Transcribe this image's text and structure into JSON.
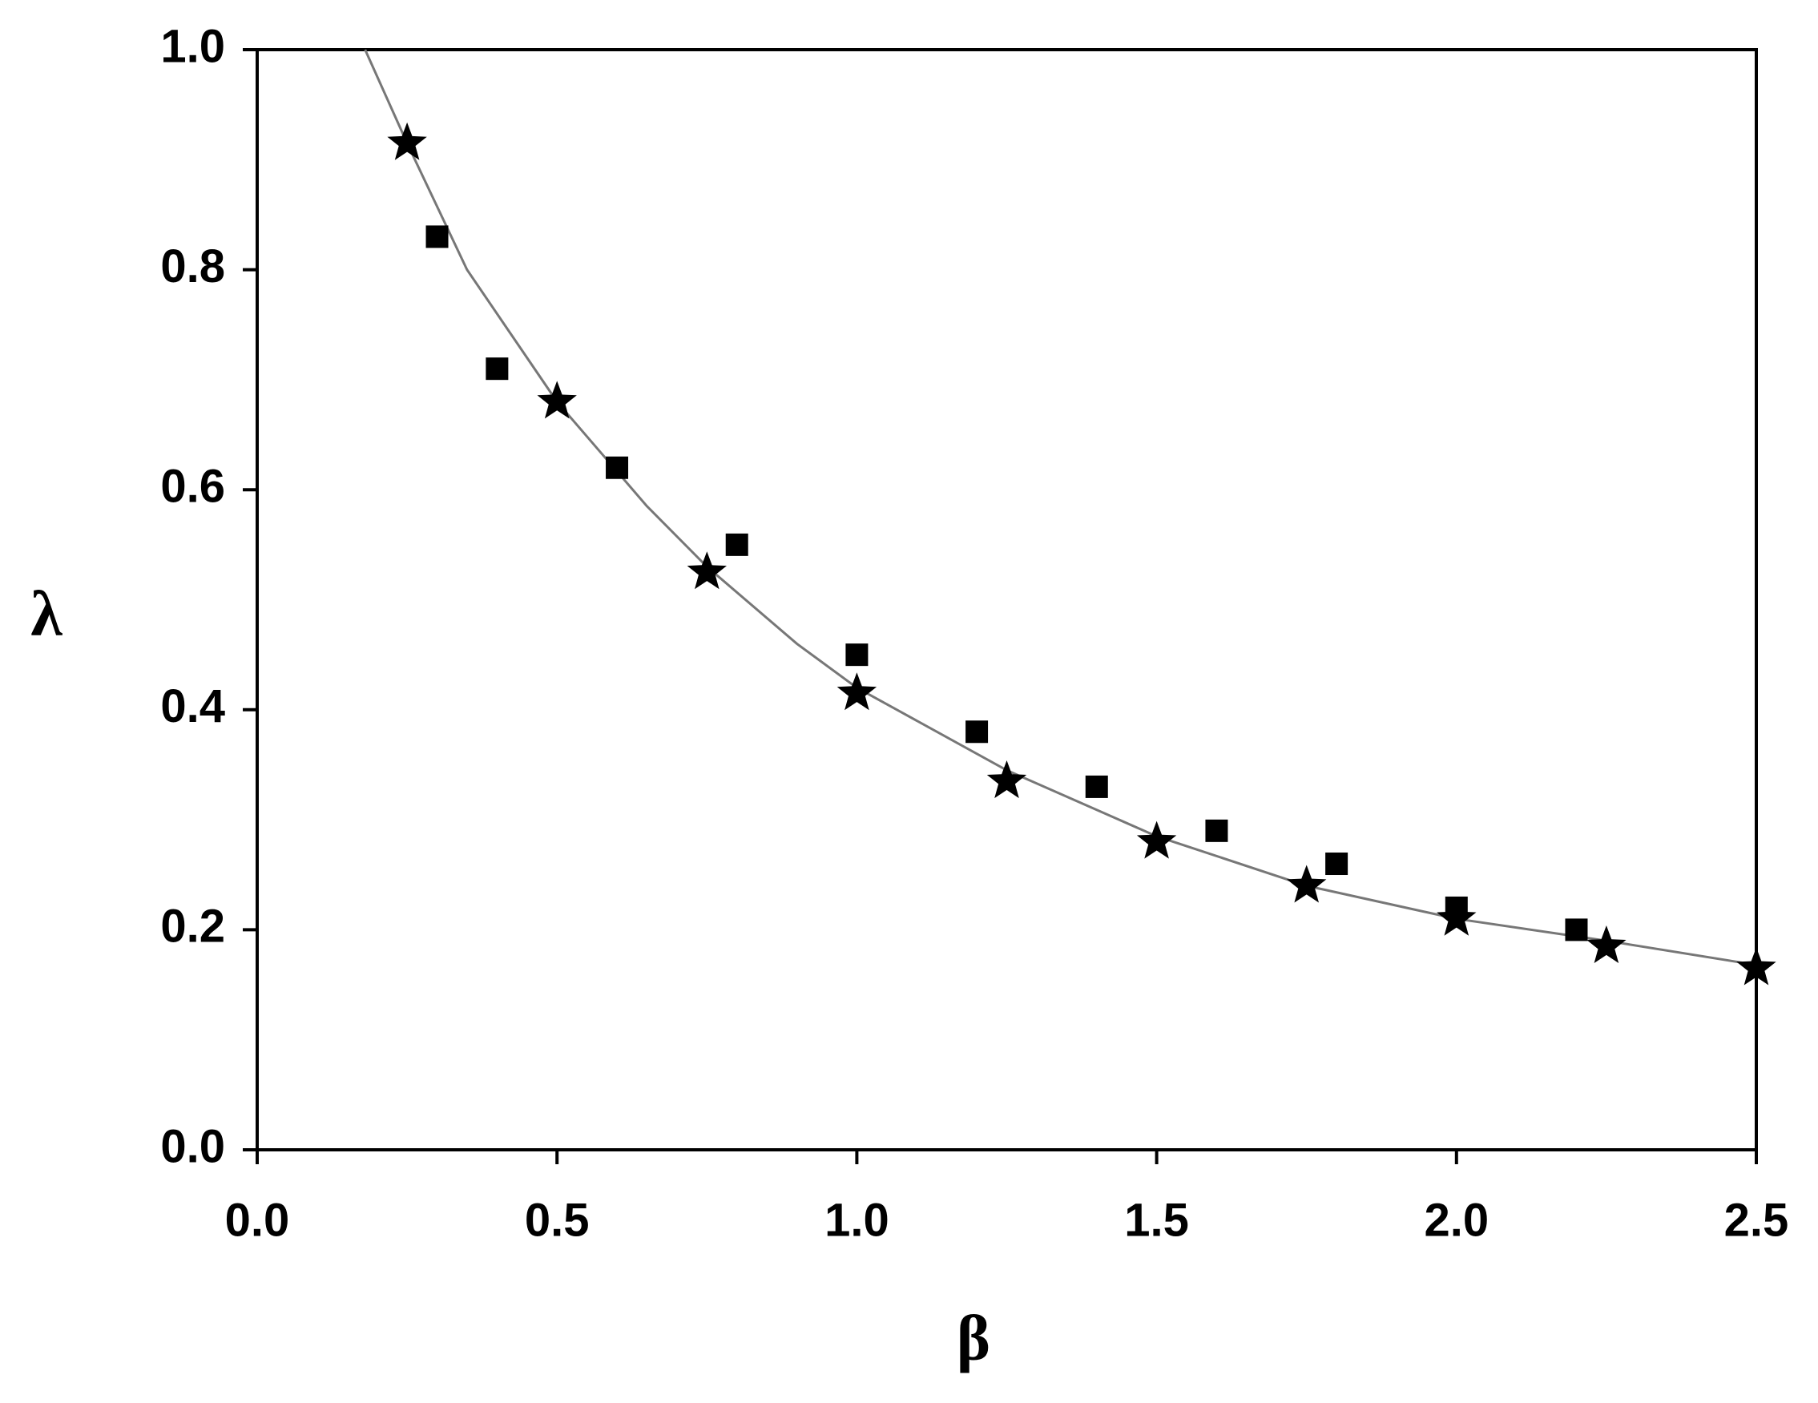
{
  "chart_data": {
    "type": "scatter",
    "x_label": "β",
    "y_label": "λ",
    "xlim": [
      0,
      2.5
    ],
    "ylim": [
      0,
      1.0
    ],
    "xticks": [
      {
        "value": 0,
        "label": "0.0"
      },
      0.5,
      {
        "value": 1,
        "label": "1.0"
      },
      1.5,
      {
        "value": 2,
        "label": "2.0"
      },
      2.5
    ],
    "yticks": [
      {
        "value": 0,
        "label": "0.0"
      },
      0.2,
      0.4,
      0.6,
      0.8,
      {
        "value": 1,
        "label": "1.0"
      }
    ],
    "series": [
      {
        "marker": "line",
        "color": "#777777",
        "x": [
          0.18,
          0.25,
          0.35,
          0.5,
          0.65,
          0.75,
          0.9,
          1.0,
          1.25,
          1.5,
          1.75,
          2.0,
          2.25,
          2.5
        ],
        "values": [
          1.0,
          0.915,
          0.8,
          0.68,
          0.585,
          0.53,
          0.46,
          0.42,
          0.345,
          0.285,
          0.24,
          0.21,
          0.19,
          0.168
        ]
      },
      {
        "marker": "square",
        "color": "#000000",
        "x": [
          0.3,
          0.4,
          0.6,
          0.8,
          1.0,
          1.2,
          1.4,
          1.6,
          1.8,
          2.0,
          2.2
        ],
        "values": [
          0.83,
          0.71,
          0.62,
          0.55,
          0.45,
          0.38,
          0.33,
          0.29,
          0.26,
          0.22,
          0.2
        ]
      },
      {
        "marker": "star",
        "color": "#000000",
        "x": [
          0.25,
          0.5,
          0.75,
          1.0,
          1.25,
          1.5,
          1.75,
          2.0,
          2.25,
          2.5
        ],
        "values": [
          0.915,
          0.68,
          0.525,
          0.415,
          0.335,
          0.28,
          0.24,
          0.21,
          0.185,
          0.165
        ]
      }
    ]
  }
}
